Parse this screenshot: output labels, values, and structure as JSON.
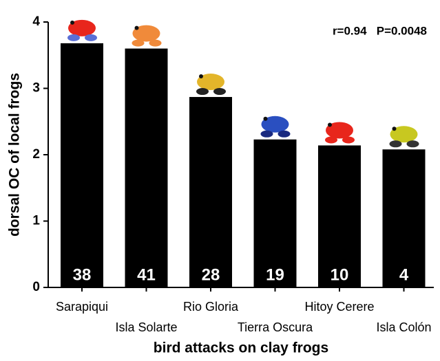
{
  "chart_data": {
    "type": "bar",
    "x_label": "bird attacks on clay frogs",
    "y_label": "dorsal OC of local frogs",
    "annotation": "r=0.94   P=0.0048",
    "categories": [
      "Sarapiqui",
      "Isla Solarte",
      "Rio Gloria",
      "Tierra Oscura",
      "Hitoy Cerere",
      "Isla Colón"
    ],
    "values": [
      3.68,
      3.6,
      2.87,
      2.23,
      2.14,
      2.08
    ],
    "value_labels": [
      "38",
      "41",
      "28",
      "19",
      "10",
      "4"
    ],
    "color": "#000000",
    "ylim": [
      0,
      4
    ],
    "yticks": [
      0,
      1,
      2,
      3,
      4
    ],
    "grid": false
  }
}
